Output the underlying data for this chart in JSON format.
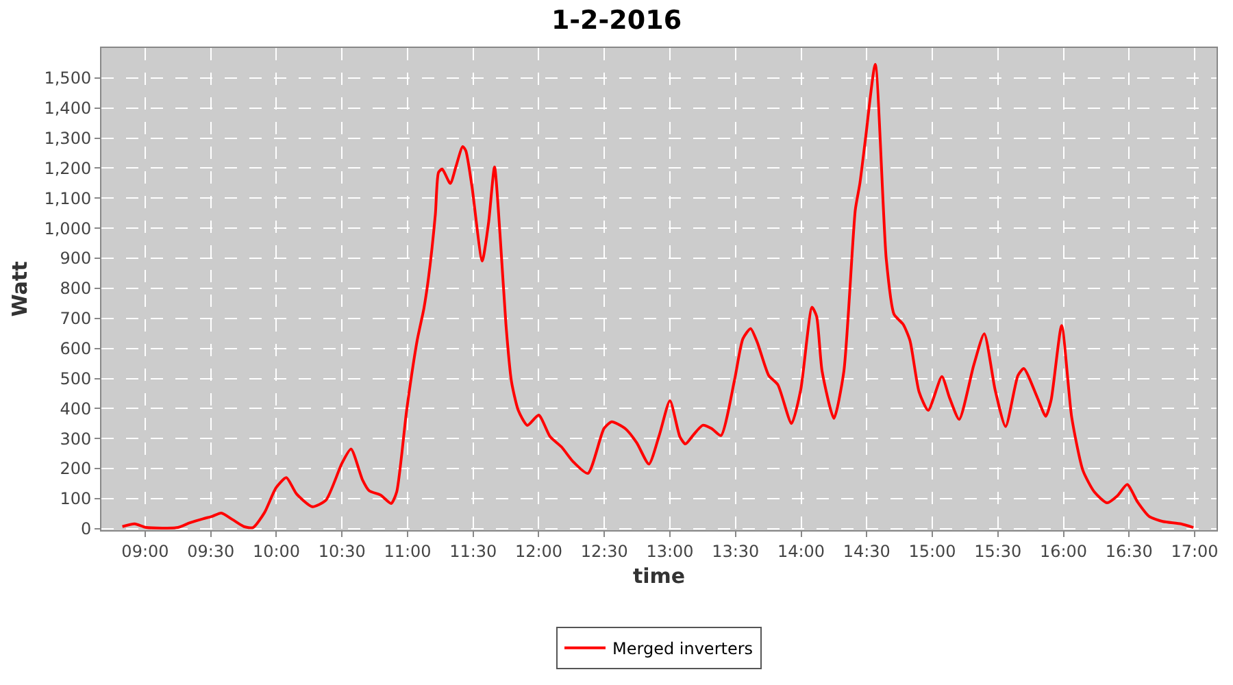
{
  "chart_data": {
    "type": "line",
    "title": "1-2-2016",
    "xlabel": "time",
    "ylabel": "Watt",
    "x": [
      8.826,
      8.92,
      9.007,
      9.25,
      9.337,
      9.441,
      9.51,
      9.58,
      9.667,
      9.753,
      9.823,
      9.91,
      9.997,
      10.076,
      10.153,
      10.274,
      10.378,
      10.5,
      10.569,
      10.656,
      10.708,
      10.795,
      10.875,
      10.917,
      10.993,
      11.073,
      11.125,
      11.16,
      11.212,
      11.236,
      11.264,
      11.326,
      11.368,
      11.42,
      11.444,
      11.49,
      11.569,
      11.618,
      11.663,
      11.705,
      11.75,
      11.792,
      11.844,
      11.913,
      12.0,
      12.087,
      12.174,
      12.26,
      12.375,
      12.497,
      12.556,
      12.66,
      12.747,
      12.84,
      12.92,
      13.0,
      13.076,
      13.118,
      13.18,
      13.25,
      13.319,
      13.389,
      13.493,
      13.556,
      13.615,
      13.667,
      13.753,
      13.823,
      13.927,
      13.997,
      14.083,
      14.118,
      14.16,
      14.25,
      14.326,
      14.413,
      14.448,
      14.493,
      14.565,
      14.649,
      14.708,
      14.778,
      14.83,
      14.899,
      14.969,
      15.073,
      15.132,
      15.205,
      15.316,
      15.396,
      15.479,
      15.559,
      15.653,
      15.698,
      15.802,
      15.865,
      15.906,
      15.986,
      16.063,
      16.149,
      16.236,
      16.333,
      16.41,
      16.486,
      16.566,
      16.653,
      16.757,
      16.896,
      16.99
    ],
    "series": [
      {
        "name": "Merged inverters",
        "color": "#ff0000",
        "values": [
          7,
          16,
          4,
          4,
          19,
          33,
          41,
          52,
          30,
          7,
          4,
          54,
          136,
          170,
          116,
          73,
          95,
          218,
          265,
          163,
          126,
          112,
          84,
          122,
          394,
          626,
          734,
          836,
          1047,
          1186,
          1197,
          1149,
          1204,
          1272,
          1258,
          1142,
          891,
          1020,
          1204,
          979,
          680,
          490,
          394,
          344,
          378,
          306,
          272,
          224,
          184,
          333,
          356,
          333,
          286,
          215,
          313,
          426,
          306,
          282,
          313,
          344,
          333,
          310,
          496,
          632,
          666,
          619,
          510,
          479,
          350,
          462,
          737,
          707,
          524,
          367,
          524,
          1061,
          1149,
          1306,
          1545,
          898,
          714,
          680,
          626,
          456,
          394,
          506,
          435,
          364,
          544,
          649,
          462,
          340,
          510,
          533,
          435,
          374,
          428,
          676,
          370,
          193,
          122,
          86,
          109,
          147,
          88,
          41,
          24,
          16,
          4
        ]
      }
    ],
    "xlim": [
      8.666,
      17.167
    ],
    "xticks": [
      {
        "value": 9,
        "label": "09:00"
      },
      {
        "value": 9.5,
        "label": "09:30"
      },
      {
        "value": 10,
        "label": "10:00"
      },
      {
        "value": 10.5,
        "label": "10:30"
      },
      {
        "value": 11,
        "label": "11:00"
      },
      {
        "value": 11.5,
        "label": "11:30"
      },
      {
        "value": 12,
        "label": "12:00"
      },
      {
        "value": 12.5,
        "label": "12:30"
      },
      {
        "value": 13,
        "label": "13:00"
      },
      {
        "value": 13.5,
        "label": "13:30"
      },
      {
        "value": 14,
        "label": "14:00"
      },
      {
        "value": 14.5,
        "label": "14:30"
      },
      {
        "value": 15,
        "label": "15:00"
      },
      {
        "value": 15.5,
        "label": "15:30"
      },
      {
        "value": 16,
        "label": "16:00"
      },
      {
        "value": 16.5,
        "label": "16:30"
      },
      {
        "value": 17,
        "label": "17:00"
      }
    ],
    "ylim": [
      -5,
      1600
    ],
    "yticks": [
      0,
      100,
      200,
      300,
      400,
      500,
      600,
      700,
      800,
      900,
      {
        "value": 1000,
        "label": "1,000"
      },
      {
        "value": 1100,
        "label": "1,100"
      },
      {
        "value": 1200,
        "label": "1,200"
      },
      {
        "value": 1300,
        "label": "1,300"
      },
      {
        "value": 1400,
        "label": "1,400"
      },
      {
        "value": 1500,
        "label": "1,500"
      }
    ],
    "grid": true,
    "legend": "bottom",
    "line_style": "solid"
  }
}
